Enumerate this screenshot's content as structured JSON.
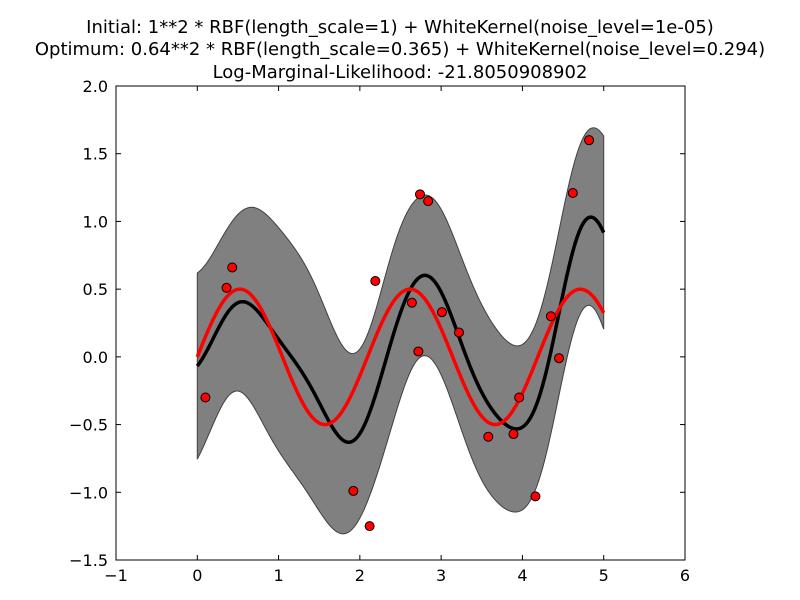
{
  "chart_data": {
    "type": "line",
    "title_lines": [
      "Initial: 1**2 * RBF(length_scale=1) + WhiteKernel(noise_level=1e-05)",
      "Optimum: 0.64**2 * RBF(length_scale=0.365) + WhiteKernel(noise_level=0.294)",
      "Log-Marginal-Likelihood: -21.8050908902"
    ],
    "xlim": [
      -1,
      6
    ],
    "ylim": [
      -1.5,
      2.0
    ],
    "xticks": [
      -1,
      0,
      1,
      2,
      3,
      4,
      5,
      6
    ],
    "yticks": [
      -1.5,
      -1.0,
      -0.5,
      0.0,
      0.5,
      1.0,
      1.5,
      2.0
    ],
    "xtick_labels": [
      "−1",
      "0",
      "1",
      "2",
      "3",
      "4",
      "5",
      "6"
    ],
    "ytick_labels": [
      "−1.5",
      "−1.0",
      "−0.5",
      "0.0",
      "0.5",
      "1.0",
      "1.5",
      "2.0"
    ],
    "kernel": {
      "amplitude": 0.64,
      "length_scale": 0.365,
      "noise_level": 0.294
    },
    "curve_range": [
      0,
      5
    ],
    "points": {
      "x": [
        0.1,
        0.36,
        0.43,
        1.92,
        2.12,
        2.19,
        2.64,
        2.72,
        2.74,
        2.84,
        3.01,
        3.22,
        3.58,
        3.89,
        3.96,
        4.16,
        4.35,
        4.45,
        4.62,
        4.82
      ],
      "y": [
        -0.3,
        0.51,
        0.66,
        -0.99,
        -1.25,
        0.56,
        0.4,
        0.04,
        1.2,
        1.15,
        0.33,
        0.18,
        -0.59,
        -0.57,
        -0.3,
        -1.03,
        0.3,
        -0.01,
        1.21,
        1.6
      ]
    },
    "true_function": {
      "amplitude": 0.5,
      "frequency": 3
    },
    "colors": {
      "mean": "#000000",
      "band": "#808080",
      "true": "#ff0000",
      "points": "#ff0000"
    }
  }
}
